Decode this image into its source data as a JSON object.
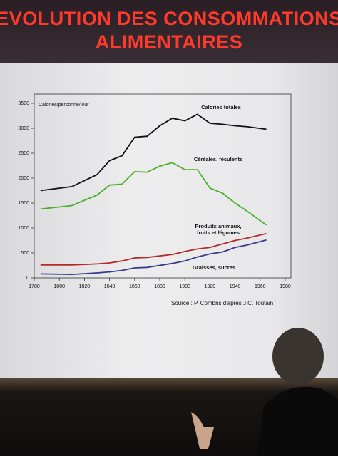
{
  "chart_data": {
    "type": "line",
    "title": "EVOLUTION DES CONSOMMATIONS ALIMENTAIRES",
    "y_label": "Calories/personne/jour",
    "source": "Source : P. Combris d'après J.C. Toutain",
    "x": [
      1785,
      1810,
      1830,
      1840,
      1850,
      1860,
      1870,
      1880,
      1890,
      1900,
      1910,
      1920,
      1930,
      1940,
      1950,
      1965
    ],
    "series": [
      {
        "name": "Calories totales",
        "color": "#111111",
        "values": [
          1750,
          1830,
          2070,
          2350,
          2450,
          2820,
          2840,
          3050,
          3200,
          3150,
          3280,
          3100,
          3080,
          3050,
          3030,
          2980
        ]
      },
      {
        "name": "Céréales, féculents",
        "color": "#4caf2a",
        "values": [
          1380,
          1450,
          1660,
          1860,
          1880,
          2130,
          2120,
          2240,
          2310,
          2170,
          2170,
          1800,
          1700,
          1500,
          1330,
          1060
        ]
      },
      {
        "name": "Produits animaux, fruits et légumes",
        "color": "#b22a2a",
        "values": [
          260,
          260,
          280,
          300,
          340,
          400,
          410,
          440,
          470,
          530,
          580,
          610,
          680,
          750,
          800,
          890
        ]
      },
      {
        "name": "Graisses, sucres",
        "color": "#3a3a8a",
        "values": [
          80,
          70,
          100,
          120,
          150,
          200,
          210,
          250,
          290,
          340,
          420,
          480,
          520,
          610,
          660,
          760
        ]
      }
    ],
    "xlim": [
      1780,
      1980
    ],
    "xticks": [
      1780,
      1800,
      1820,
      1840,
      1860,
      1880,
      1900,
      1920,
      1940,
      1960,
      1980
    ],
    "ylim": [
      0,
      3500
    ],
    "yticks": [
      0,
      500,
      1000,
      1500,
      2000,
      2500,
      3000,
      3500
    ]
  }
}
